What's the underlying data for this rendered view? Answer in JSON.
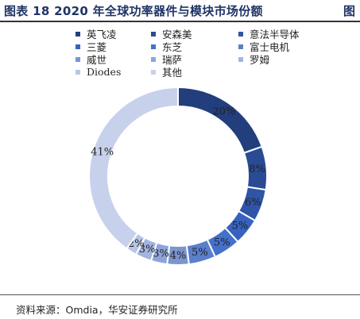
{
  "header": {
    "title": "图表 18 2020 年全球功率器件与模块市场份额",
    "corner_label": "图"
  },
  "source": "资料来源：Omdia，华安证券研究所",
  "chart_data": {
    "type": "pie",
    "donut": true,
    "title": "",
    "legend_position": "top",
    "categories": [
      "英飞凌",
      "安森美",
      "意法半导体",
      "三菱",
      "东芝",
      "富士电机",
      "威世",
      "瑞萨",
      "罗姆",
      "Diodes",
      "其他"
    ],
    "values": [
      20,
      8,
      6,
      5,
      5,
      5,
      4,
      3,
      3,
      2,
      41
    ],
    "labels": [
      "20%",
      "8%",
      "6%",
      "5%",
      "5%",
      "5%",
      "4%",
      "3%",
      "3%",
      "2%",
      "41%"
    ],
    "colors": [
      "#233e7d",
      "#2a4b94",
      "#2f55a9",
      "#3762bf",
      "#4471cc",
      "#5a7fcb",
      "#7b95cf",
      "#8ea4d8",
      "#a3b4df",
      "#b7c5e6",
      "#c8d1ec"
    ]
  }
}
